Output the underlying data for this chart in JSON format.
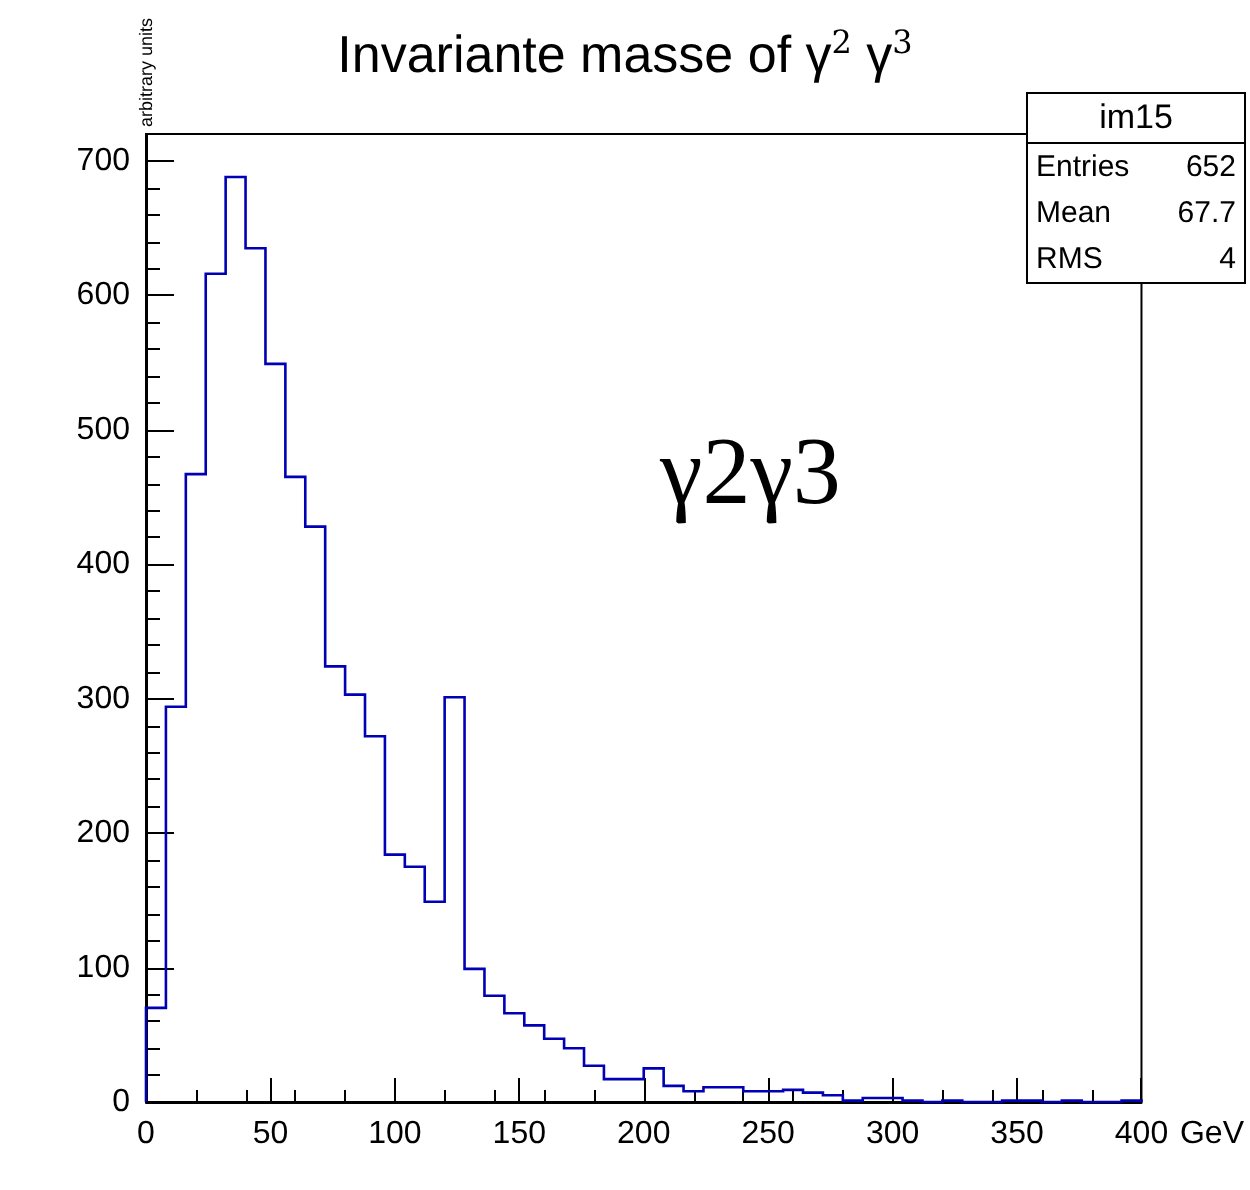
{
  "chart_data": {
    "type": "histogram",
    "title": "Invariante masse of γ$^{2}$ γ$^{3}$",
    "xlabel": "GeV",
    "ylabel": "arbitrary units",
    "bins": [
      0,
      8,
      16,
      24,
      32,
      40,
      48,
      56,
      64,
      72,
      80,
      88,
      96,
      104,
      112,
      120,
      128,
      136,
      144,
      152,
      160,
      168,
      176,
      184,
      192,
      200,
      208,
      216,
      224,
      232,
      240,
      248,
      256,
      264,
      272,
      280,
      288,
      296,
      304,
      312,
      320,
      328,
      336,
      344,
      352,
      360,
      368,
      376,
      384,
      392,
      400
    ],
    "values": [
      70,
      294,
      467,
      616,
      688,
      635,
      549,
      465,
      428,
      324,
      303,
      272,
      184,
      175,
      149,
      301,
      99,
      79,
      66,
      57,
      47,
      40,
      27,
      17,
      17,
      25,
      12,
      8,
      11,
      11,
      8,
      8,
      9,
      7,
      5,
      1,
      3,
      3,
      1,
      0,
      1,
      0,
      0,
      1,
      1,
      0,
      1,
      0,
      0,
      1
    ],
    "color": "#0000b4",
    "xlim": [
      0,
      400
    ],
    "xticks": [
      0,
      50,
      100,
      150,
      200,
      250,
      300,
      350,
      400
    ],
    "ylim": [
      0,
      720
    ],
    "yticks": [
      0,
      100,
      200,
      300,
      400,
      500,
      600,
      700
    ],
    "grid": false,
    "legend": false,
    "annotations": [
      "γ2γ3",
      "im15",
      "Entries 652",
      "Mean 67.7",
      "RMS 4"
    ]
  }
}
